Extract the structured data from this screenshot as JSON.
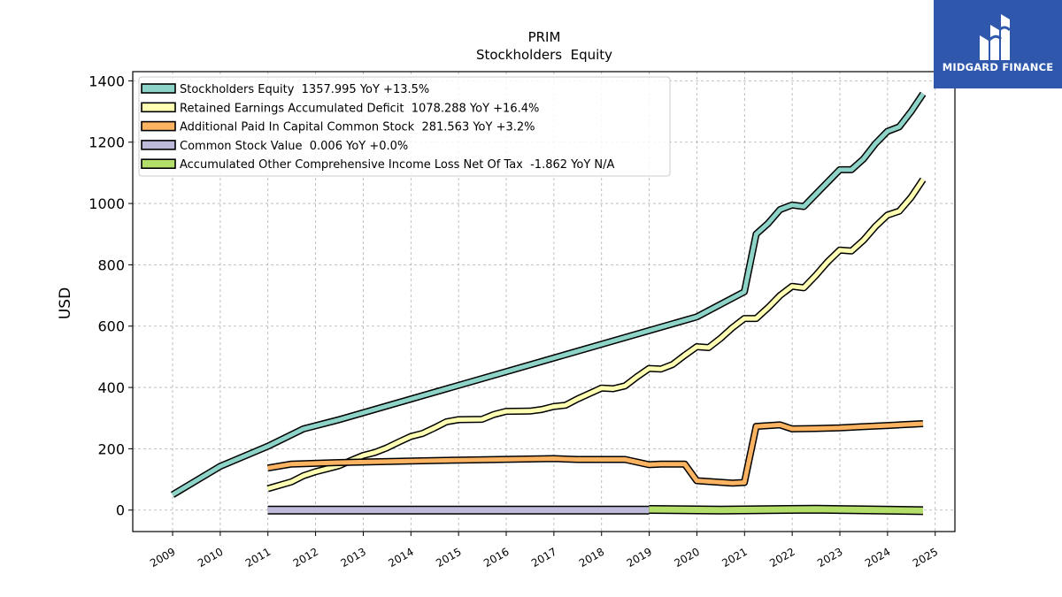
{
  "brand": {
    "name": "MIDGARD FINANCE",
    "bg_color": "#2f58ad"
  },
  "chart_data": {
    "type": "line",
    "title": "PRIM",
    "subtitle": "Stockholders  Equity",
    "xlabel": "",
    "ylabel": "USD",
    "xlim": [
      "2008-03-01",
      "2025-06-01"
    ],
    "ylim": [
      -70,
      1430
    ],
    "x_ticks": [
      "2009",
      "2010",
      "2011",
      "2012",
      "2013",
      "2014",
      "2015",
      "2016",
      "2017",
      "2018",
      "2019",
      "2020",
      "2021",
      "2022",
      "2023",
      "2024",
      "2025"
    ],
    "y_ticks": [
      0,
      200,
      400,
      600,
      800,
      1000,
      1200,
      1400
    ],
    "grid": true,
    "legend": "top-left",
    "series": [
      {
        "name": "Stockholders Equity  1357.995 YoY +13.5%",
        "color": "#8dd3c7",
        "points": [
          [
            "2009-01-01",
            50
          ],
          [
            "2010-01-01",
            143
          ],
          [
            "2010-12-31",
            208
          ],
          [
            "2011-09-30",
            265
          ],
          [
            "2012-06-30",
            295
          ],
          [
            "2019-12-31",
            630
          ],
          [
            "2020-12-31",
            712
          ],
          [
            "2021-03-31",
            900
          ],
          [
            "2021-06-30",
            935
          ],
          [
            "2021-09-30",
            980
          ],
          [
            "2021-12-31",
            995
          ],
          [
            "2022-03-31",
            990
          ],
          [
            "2022-06-30",
            1030
          ],
          [
            "2022-09-30",
            1070
          ],
          [
            "2022-12-31",
            1110
          ],
          [
            "2023-03-31",
            1110
          ],
          [
            "2023-06-30",
            1145
          ],
          [
            "2023-09-30",
            1195
          ],
          [
            "2023-12-31",
            1235
          ],
          [
            "2024-03-31",
            1250
          ],
          [
            "2024-06-30",
            1300
          ],
          [
            "2024-09-30",
            1358
          ]
        ]
      },
      {
        "name": "Retained Earnings Accumulated Deficit  1078.288 YoY +16.4%",
        "color": "#ffffb3",
        "points": [
          [
            "2010-12-31",
            70
          ],
          [
            "2011-06-30",
            92
          ],
          [
            "2011-09-30",
            112
          ],
          [
            "2011-12-31",
            125
          ],
          [
            "2012-06-30",
            145
          ],
          [
            "2012-09-30",
            162
          ],
          [
            "2012-12-31",
            178
          ],
          [
            "2013-03-31",
            188
          ],
          [
            "2013-06-30",
            203
          ],
          [
            "2013-09-30",
            222
          ],
          [
            "2013-12-31",
            240
          ],
          [
            "2014-03-31",
            250
          ],
          [
            "2014-06-30",
            268
          ],
          [
            "2014-09-30",
            288
          ],
          [
            "2014-12-31",
            295
          ],
          [
            "2015-06-30",
            296
          ],
          [
            "2015-09-30",
            312
          ],
          [
            "2015-12-31",
            322
          ],
          [
            "2016-06-30",
            323
          ],
          [
            "2016-09-30",
            328
          ],
          [
            "2016-12-31",
            338
          ],
          [
            "2017-03-31",
            342
          ],
          [
            "2017-06-30",
            362
          ],
          [
            "2017-09-30",
            380
          ],
          [
            "2017-12-31",
            398
          ],
          [
            "2018-03-31",
            396
          ],
          [
            "2018-06-30",
            405
          ],
          [
            "2018-09-30",
            435
          ],
          [
            "2018-12-31",
            462
          ],
          [
            "2019-03-31",
            460
          ],
          [
            "2019-06-30",
            475
          ],
          [
            "2019-09-30",
            505
          ],
          [
            "2019-12-31",
            533
          ],
          [
            "2020-03-31",
            530
          ],
          [
            "2020-06-30",
            560
          ],
          [
            "2020-09-30",
            595
          ],
          [
            "2020-12-31",
            625
          ],
          [
            "2021-03-31",
            625
          ],
          [
            "2021-06-30",
            660
          ],
          [
            "2021-09-30",
            700
          ],
          [
            "2021-12-31",
            730
          ],
          [
            "2022-03-31",
            725
          ],
          [
            "2022-06-30",
            765
          ],
          [
            "2022-09-30",
            810
          ],
          [
            "2022-12-31",
            848
          ],
          [
            "2023-03-31",
            845
          ],
          [
            "2023-06-30",
            880
          ],
          [
            "2023-09-30",
            925
          ],
          [
            "2023-12-31",
            962
          ],
          [
            "2024-03-31",
            975
          ],
          [
            "2024-06-30",
            1020
          ],
          [
            "2024-09-30",
            1078
          ]
        ]
      },
      {
        "name": "Additional Paid In Capital Common Stock  281.563 YoY +3.2%",
        "color": "#fdb462",
        "points": [
          [
            "2010-12-31",
            137
          ],
          [
            "2011-06-30",
            150
          ],
          [
            "2012-06-30",
            155
          ],
          [
            "2013-12-31",
            160
          ],
          [
            "2014-12-31",
            163
          ],
          [
            "2016-12-31",
            168
          ],
          [
            "2017-06-30",
            165
          ],
          [
            "2017-12-31",
            165
          ],
          [
            "2018-06-30",
            165
          ],
          [
            "2018-12-31",
            148
          ],
          [
            "2019-03-31",
            150
          ],
          [
            "2019-09-30",
            150
          ],
          [
            "2019-12-31",
            96
          ],
          [
            "2020-09-30",
            88
          ],
          [
            "2020-12-31",
            90
          ],
          [
            "2021-03-31",
            273
          ],
          [
            "2021-09-30",
            278
          ],
          [
            "2021-12-31",
            265
          ],
          [
            "2022-06-30",
            266
          ],
          [
            "2022-12-31",
            268
          ],
          [
            "2023-06-30",
            272
          ],
          [
            "2023-12-31",
            276
          ],
          [
            "2024-09-30",
            282
          ]
        ]
      },
      {
        "name": "Common Stock Value  0.006 YoY +0.0%",
        "color": "#bebada",
        "points": [
          [
            "2010-12-31",
            0
          ],
          [
            "2018-12-31",
            0
          ]
        ],
        "band": true
      },
      {
        "name": "Accumulated Other Comprehensive Income Loss Net Of Tax  -1.862 YoY N/A",
        "color": "#b3de69",
        "points": [
          [
            "2018-12-31",
            2
          ],
          [
            "2020-06-30",
            0
          ],
          [
            "2022-06-30",
            3
          ],
          [
            "2024-09-30",
            -2
          ]
        ],
        "band": true
      }
    ]
  }
}
